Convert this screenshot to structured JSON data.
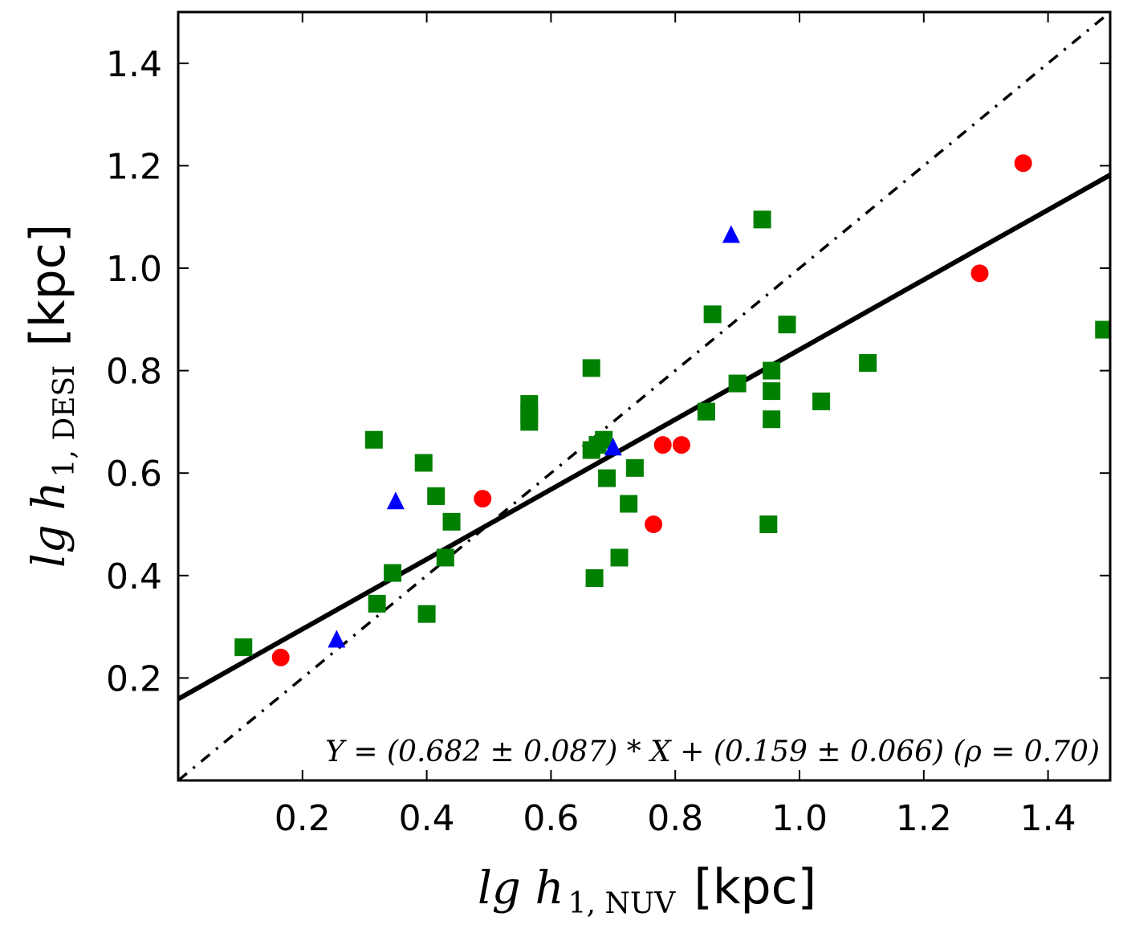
{
  "chart_data": {
    "type": "scatter",
    "title": "",
    "xlabel": {
      "main": "lg h",
      "sub": "1, NUV",
      "unit": "[kpc]"
    },
    "ylabel": {
      "main": "lg h",
      "sub": "1, DESI",
      "unit": "[kpc]"
    },
    "xlim": [
      0.0,
      1.5
    ],
    "ylim": [
      0.0,
      1.5
    ],
    "xticks": [
      0.2,
      0.4,
      0.6,
      0.8,
      1.0,
      1.2,
      1.4
    ],
    "yticks": [
      0.2,
      0.4,
      0.6,
      0.8,
      1.0,
      1.2,
      1.4
    ],
    "xtick_labels": [
      "0.2",
      "0.4",
      "0.6",
      "0.8",
      "1.0",
      "1.2",
      "1.4"
    ],
    "ytick_labels": [
      "0.2",
      "0.4",
      "0.6",
      "0.8",
      "1.0",
      "1.2",
      "1.4"
    ],
    "grid": false,
    "series": [
      {
        "name": "squares",
        "marker": "square",
        "color": "#008000",
        "points": [
          [
            0.105,
            0.26
          ],
          [
            0.315,
            0.665
          ],
          [
            0.32,
            0.345
          ],
          [
            0.345,
            0.405
          ],
          [
            0.395,
            0.62
          ],
          [
            0.4,
            0.325
          ],
          [
            0.415,
            0.555
          ],
          [
            0.43,
            0.435
          ],
          [
            0.44,
            0.505
          ],
          [
            0.565,
            0.735
          ],
          [
            0.565,
            0.715
          ],
          [
            0.565,
            0.7
          ],
          [
            0.665,
            0.805
          ],
          [
            0.67,
            0.395
          ],
          [
            0.665,
            0.645
          ],
          [
            0.675,
            0.655
          ],
          [
            0.685,
            0.665
          ],
          [
            0.69,
            0.59
          ],
          [
            0.71,
            0.435
          ],
          [
            0.725,
            0.54
          ],
          [
            0.735,
            0.61
          ],
          [
            0.85,
            0.72
          ],
          [
            0.86,
            0.91
          ],
          [
            0.9,
            0.775
          ],
          [
            0.94,
            1.095
          ],
          [
            0.95,
            0.5
          ],
          [
            0.955,
            0.8
          ],
          [
            0.955,
            0.76
          ],
          [
            0.955,
            0.705
          ],
          [
            0.98,
            0.89
          ],
          [
            1.035,
            0.74
          ],
          [
            1.11,
            0.815
          ],
          [
            1.49,
            0.88
          ]
        ]
      },
      {
        "name": "circles",
        "marker": "circle",
        "color": "#ff0000",
        "points": [
          [
            0.165,
            0.24
          ],
          [
            0.49,
            0.55
          ],
          [
            0.765,
            0.5
          ],
          [
            0.78,
            0.655
          ],
          [
            0.81,
            0.655
          ],
          [
            1.29,
            0.99
          ],
          [
            1.36,
            1.205
          ]
        ]
      },
      {
        "name": "triangles",
        "marker": "triangle",
        "color": "#0000ff",
        "points": [
          [
            0.255,
            0.275
          ],
          [
            0.35,
            0.545
          ],
          [
            0.7,
            0.65
          ],
          [
            0.89,
            1.065
          ]
        ]
      }
    ],
    "lines": [
      {
        "name": "fit",
        "style": "solid",
        "color": "#000000",
        "slope": 0.682,
        "intercept": 0.159
      },
      {
        "name": "one-to-one",
        "style": "dash-dot",
        "color": "#000000",
        "slope": 1.0,
        "intercept": 0.0
      }
    ],
    "annotation": "Y = (0.682 ± 0.087) * X + (0.159 ± 0.066) (ρ = 0.70)"
  }
}
